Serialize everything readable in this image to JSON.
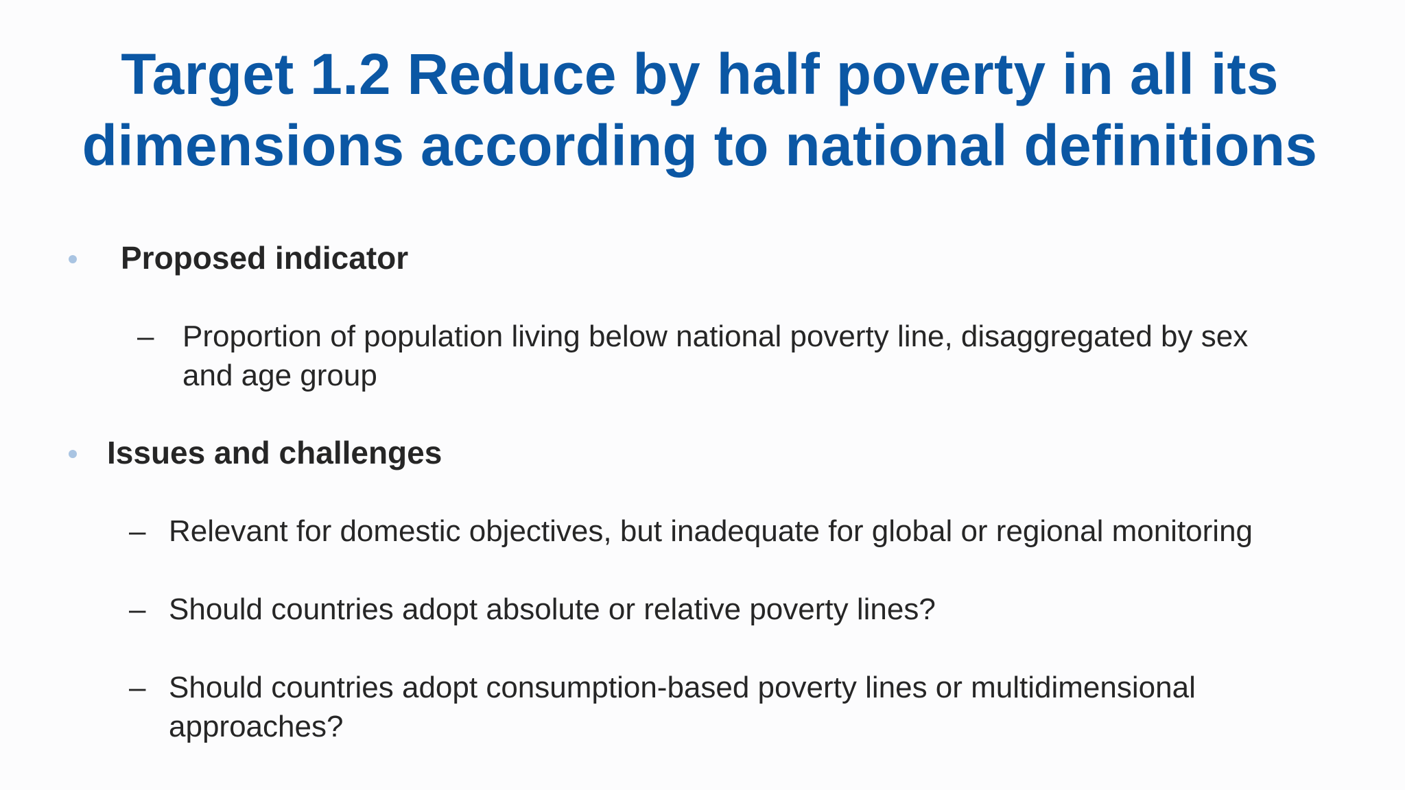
{
  "slide": {
    "title_line1": "Target 1.2 Reduce by half poverty in all its",
    "title_line2": "dimensions according to national definitions",
    "bullets": [
      {
        "label": "Proposed indicator",
        "subitems": [
          {
            "dash": "–",
            "line1": "Proportion of population living below national poverty line, disaggregated by sex",
            "line2": "and age group"
          }
        ]
      },
      {
        "label": "Issues and challenges",
        "subitems": [
          {
            "dash": "–",
            "line1": "Relevant for domestic objectives, but inadequate for global or regional monitoring"
          },
          {
            "dash": "–",
            "line1": "Should countries adopt absolute or relative poverty lines?"
          },
          {
            "dash": "–",
            "line1": "Should countries adopt consumption-based poverty lines or multidimensional",
            "line2": "approaches?"
          }
        ]
      }
    ],
    "colors": {
      "title": "#0b57a4",
      "bullet": "#a9c4e2",
      "text": "#262626"
    },
    "icons": {
      "bullet": "bullet-dot-icon"
    }
  }
}
